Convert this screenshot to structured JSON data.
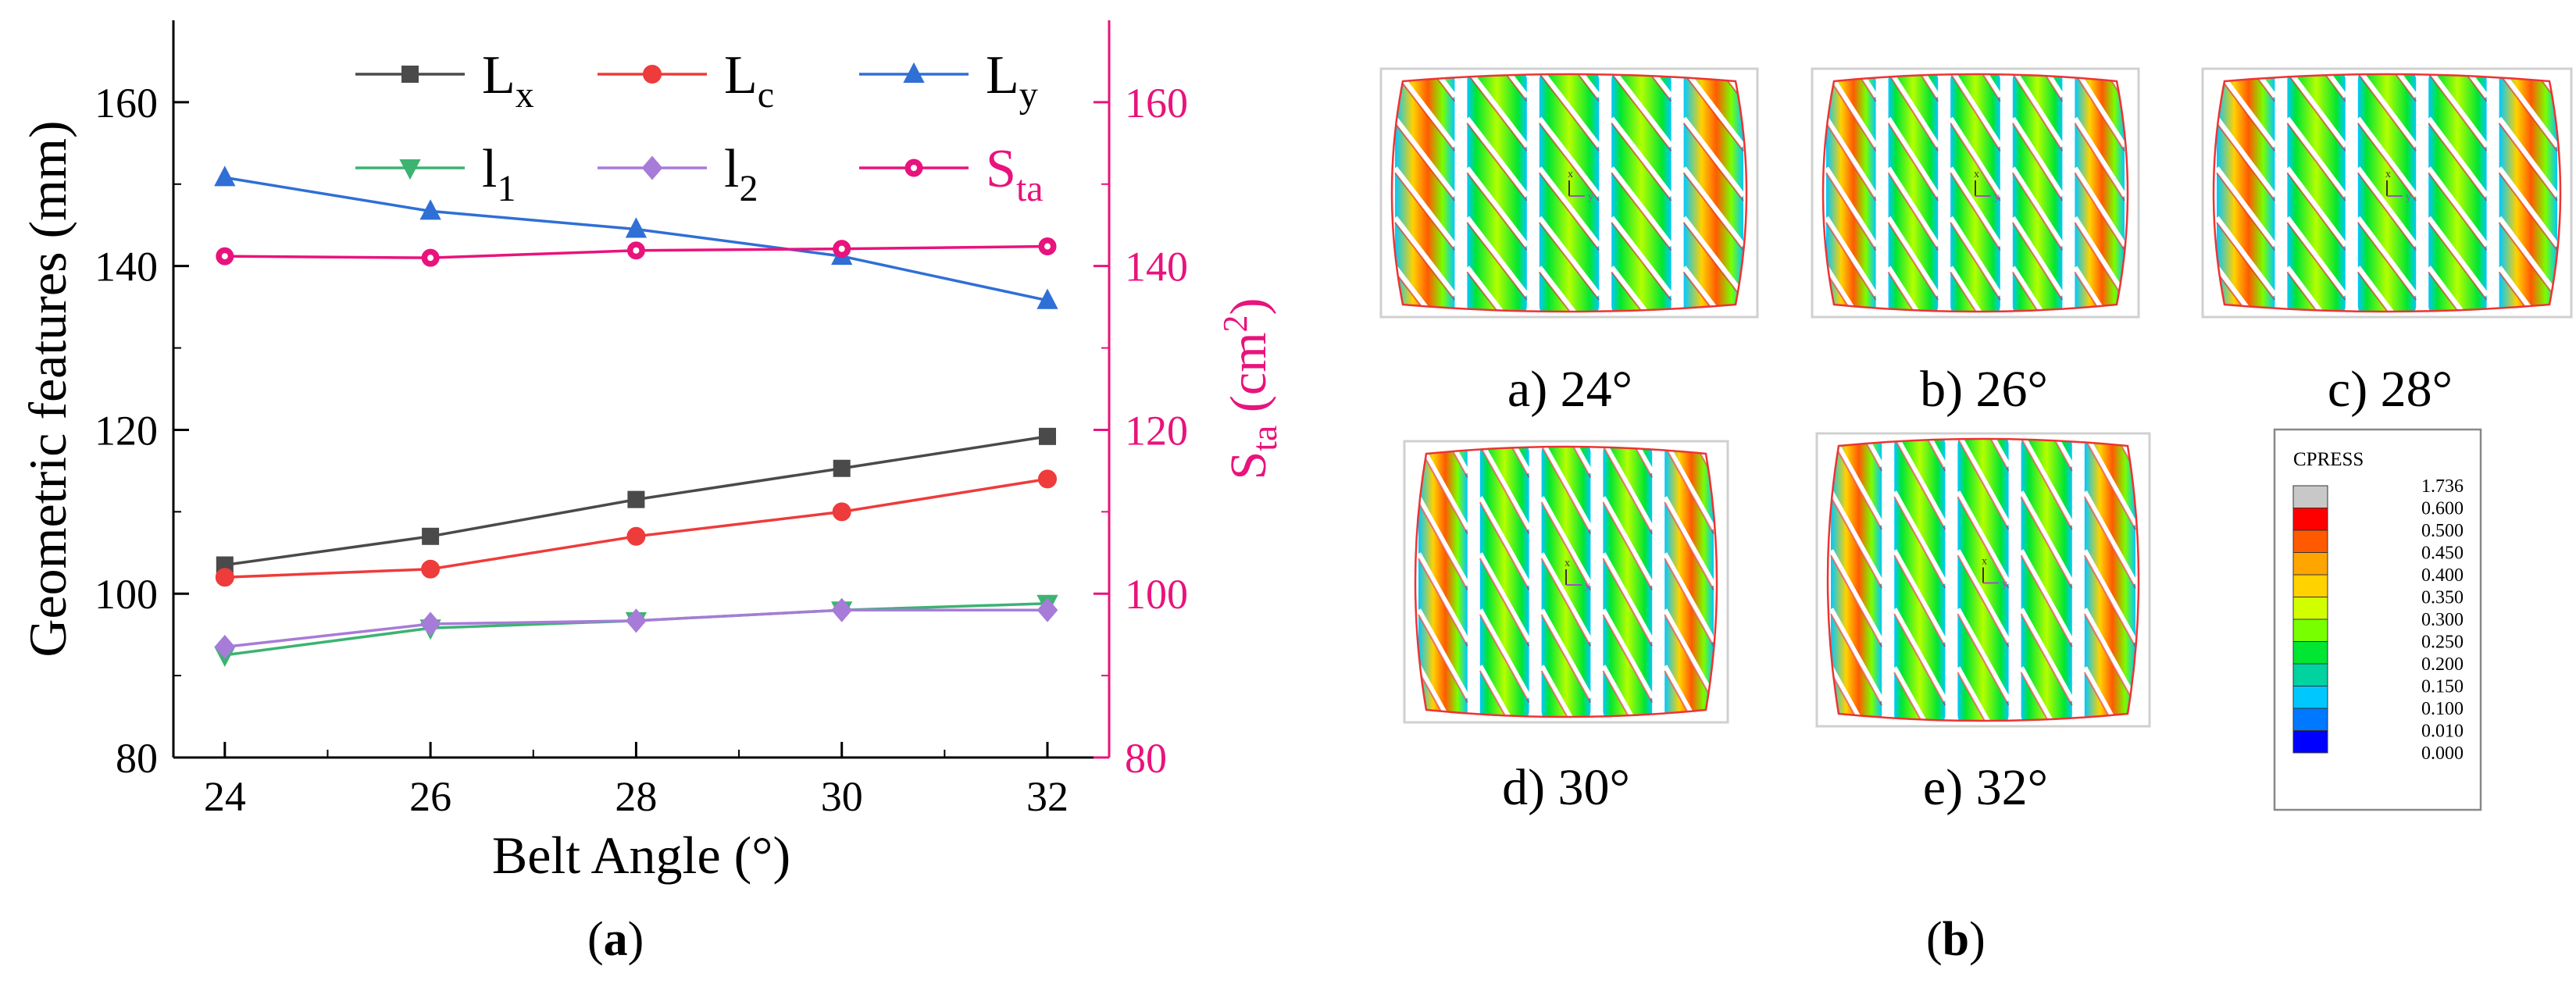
{
  "chart_data": {
    "type": "line",
    "x": [
      24,
      26,
      28,
      30,
      32
    ],
    "xlabel": "Belt Angle (°)",
    "ylabel": "Geometric features (mm)",
    "y2label": "S",
    "y2label_sub": "ta",
    "y2label_unit_open": " (cm",
    "y2label_unit_sup": "2",
    "y2label_unit_close": ")",
    "xlim": [
      23.5,
      32.6
    ],
    "ylim": [
      80,
      170
    ],
    "y2lim": [
      80,
      170
    ],
    "xticks": [
      24,
      26,
      28,
      30,
      32
    ],
    "yticks": [
      80,
      100,
      120,
      140,
      160
    ],
    "y2ticks": [
      80,
      100,
      120,
      140,
      160
    ],
    "grid": false,
    "legend_position": "top-right",
    "series": [
      {
        "name": "L",
        "sub": "x",
        "color": "#4a4a4a",
        "marker": "square",
        "axis": "left",
        "values": [
          103.5,
          107,
          111.5,
          115.3,
          119.2
        ]
      },
      {
        "name": "L",
        "sub": "c",
        "color": "#ee3b3b",
        "marker": "circle",
        "axis": "left",
        "values": [
          102,
          103,
          107,
          110,
          114
        ]
      },
      {
        "name": "L",
        "sub": "y",
        "color": "#2f6fd6",
        "marker": "triangle",
        "axis": "left",
        "values": [
          150.8,
          146.7,
          144.5,
          141.2,
          135.8
        ]
      },
      {
        "name": "l",
        "sub": "1",
        "color": "#3cb371",
        "marker": "triangle-down",
        "axis": "left",
        "values": [
          92.5,
          95.8,
          96.7,
          98.0,
          98.8
        ]
      },
      {
        "name": "l",
        "sub": "2",
        "color": "#a77bd8",
        "marker": "diamond",
        "axis": "left",
        "values": [
          93.5,
          96.3,
          96.7,
          98.0,
          98.0
        ]
      },
      {
        "name": "S",
        "sub": "ta",
        "color": "#e8137c",
        "marker": "dot-circle",
        "axis": "right",
        "values": [
          141.2,
          141.0,
          141.9,
          142.1,
          142.4
        ]
      }
    ]
  },
  "captions": {
    "a_open": "(",
    "a_letter": "a",
    "a_close": ")",
    "b_open": "(",
    "b_letter": "b",
    "b_close": ")"
  },
  "footprints": [
    {
      "label": "a) 24°"
    },
    {
      "label": "b) 26°"
    },
    {
      "label": "c) 28°"
    },
    {
      "label": "d) 30°"
    },
    {
      "label": "e) 32°"
    }
  ],
  "colorbar": {
    "title": "CPRESS",
    "levels": [
      {
        "value": "1.736",
        "color": "#c8c8c8"
      },
      {
        "value": "0.600",
        "color": "#ff0000"
      },
      {
        "value": "0.500",
        "color": "#ff5a00"
      },
      {
        "value": "0.450",
        "color": "#ffa500"
      },
      {
        "value": "0.400",
        "color": "#ffd200"
      },
      {
        "value": "0.350",
        "color": "#d2ff00"
      },
      {
        "value": "0.300",
        "color": "#78ff00"
      },
      {
        "value": "0.250",
        "color": "#00e632"
      },
      {
        "value": "0.200",
        "color": "#00d2a0"
      },
      {
        "value": "0.150",
        "color": "#00c8ff"
      },
      {
        "value": "0.100",
        "color": "#0078ff"
      },
      {
        "value": "0.010",
        "color": "#0000ff"
      },
      {
        "value": "0.000",
        "color": "#0000ff"
      }
    ]
  }
}
